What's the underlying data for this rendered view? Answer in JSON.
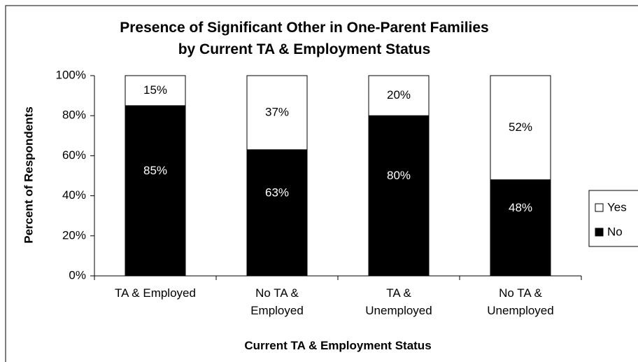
{
  "chart_data": {
    "type": "stacked_bar",
    "title": "Presence of Significant Other in One-Parent Families\nby Current TA & Employment Status",
    "x_label": "Current TA & Employment Status",
    "y_label": "Percent of Respondents",
    "categories": [
      "TA & Employed",
      "No TA &\nEmployed",
      "TA &\nUnemployed",
      "No TA &\nUnemployed"
    ],
    "series": [
      {
        "name": "No",
        "color": "#000000",
        "label_color": "#ffffff",
        "values": [
          85,
          63,
          80,
          48
        ],
        "value_labels": [
          "85%",
          "63%",
          "80%",
          "48%"
        ]
      },
      {
        "name": "Yes",
        "color": "#ffffff",
        "label_color": "#000000",
        "values": [
          15,
          37,
          20,
          52
        ],
        "value_labels": [
          "15%",
          "37%",
          "20%",
          "52%"
        ]
      }
    ],
    "ylim": [
      0,
      100
    ],
    "yticks": [
      {
        "value": 0,
        "label": "0%"
      },
      {
        "value": 20,
        "label": "20%"
      },
      {
        "value": 40,
        "label": "40%"
      },
      {
        "value": 60,
        "label": "60%"
      },
      {
        "value": 80,
        "label": "80%"
      },
      {
        "value": 100,
        "label": "100%"
      }
    ],
    "grid": false,
    "legend": "right"
  }
}
